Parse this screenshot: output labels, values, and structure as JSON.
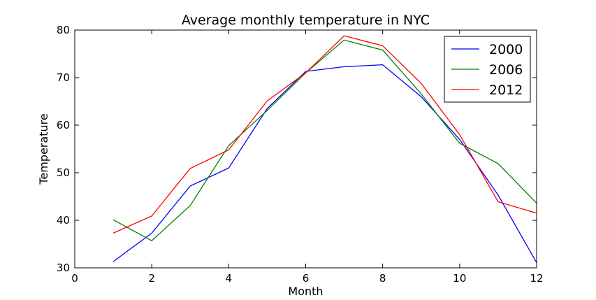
{
  "chart_data": {
    "type": "line",
    "title": "Average monthly temperature in NYC",
    "xlabel": "Month",
    "ylabel": "Temperature",
    "xlim": [
      0,
      12
    ],
    "ylim": [
      30,
      80
    ],
    "x_ticks": [
      "0",
      "2",
      "4",
      "6",
      "8",
      "10",
      "12"
    ],
    "y_ticks": [
      "30",
      "40",
      "50",
      "60",
      "70",
      "80"
    ],
    "grid": false,
    "legend_position": "top-right",
    "x": [
      1,
      2,
      3,
      4,
      5,
      6,
      7,
      8,
      9,
      10,
      11,
      12
    ],
    "series": [
      {
        "name": "2000",
        "color": "#0000ff",
        "values": [
          31.3,
          37.3,
          47.2,
          51.0,
          63.5,
          71.3,
          72.3,
          72.7,
          66.0,
          57.0,
          45.3,
          31.1
        ]
      },
      {
        "name": "2006",
        "color": "#008000",
        "values": [
          40.1,
          35.7,
          43.1,
          55.7,
          63.1,
          71.0,
          77.9,
          75.8,
          66.6,
          56.2,
          51.9,
          43.6
        ]
      },
      {
        "name": "2012",
        "color": "#ff0000",
        "values": [
          37.3,
          40.9,
          50.9,
          54.8,
          65.1,
          71.0,
          78.8,
          76.7,
          68.8,
          58.0,
          43.9,
          41.5
        ]
      }
    ]
  }
}
